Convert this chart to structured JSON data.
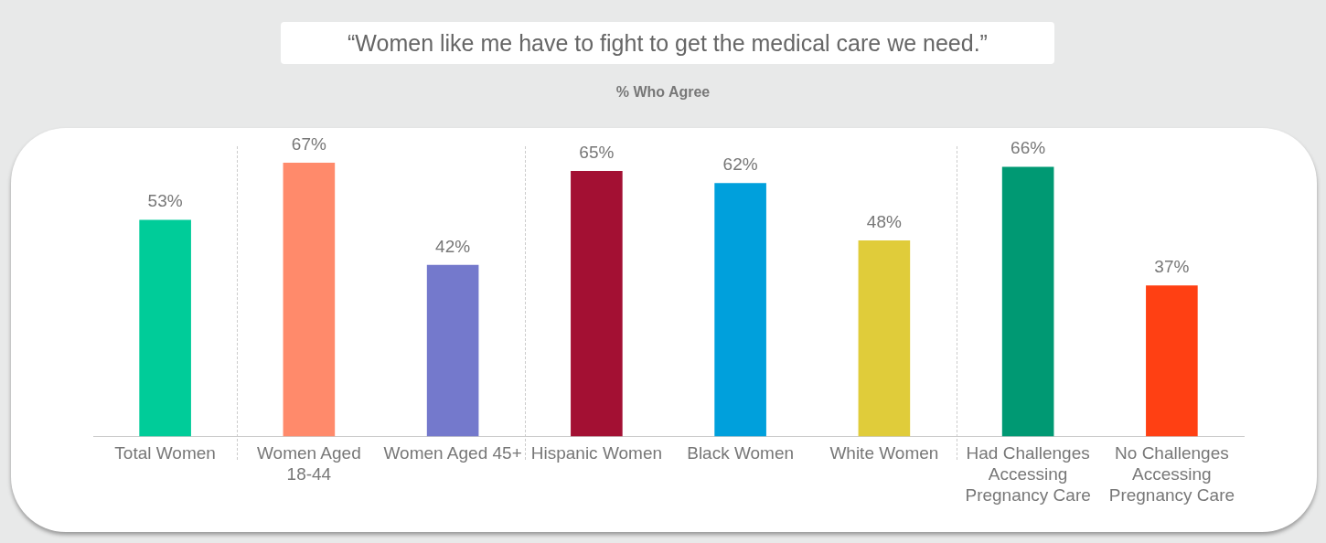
{
  "chart_data": {
    "type": "bar",
    "title": "“Women like me have to fight to get the medical care we need.”",
    "subtitle": "% Who Agree",
    "categories": [
      "Total Women",
      "Women Aged 18-44",
      "Women Aged 45+",
      "Hispanic Women",
      "Black Women",
      "White Women",
      "Had Challenges Accessing Pregnancy Care",
      "No Challenges Accessing Pregnancy Care"
    ],
    "values": [
      53,
      67,
      42,
      65,
      62,
      48,
      66,
      37
    ],
    "colors": [
      "#00cc99",
      "#ff8a6b",
      "#7479cc",
      "#a31033",
      "#00a0dc",
      "#e0cc3a",
      "#009973",
      "#ff4013"
    ],
    "value_labels": [
      "53%",
      "67%",
      "42%",
      "65%",
      "62%",
      "48%",
      "66%",
      "37%"
    ],
    "grid": false,
    "legend": false
  }
}
